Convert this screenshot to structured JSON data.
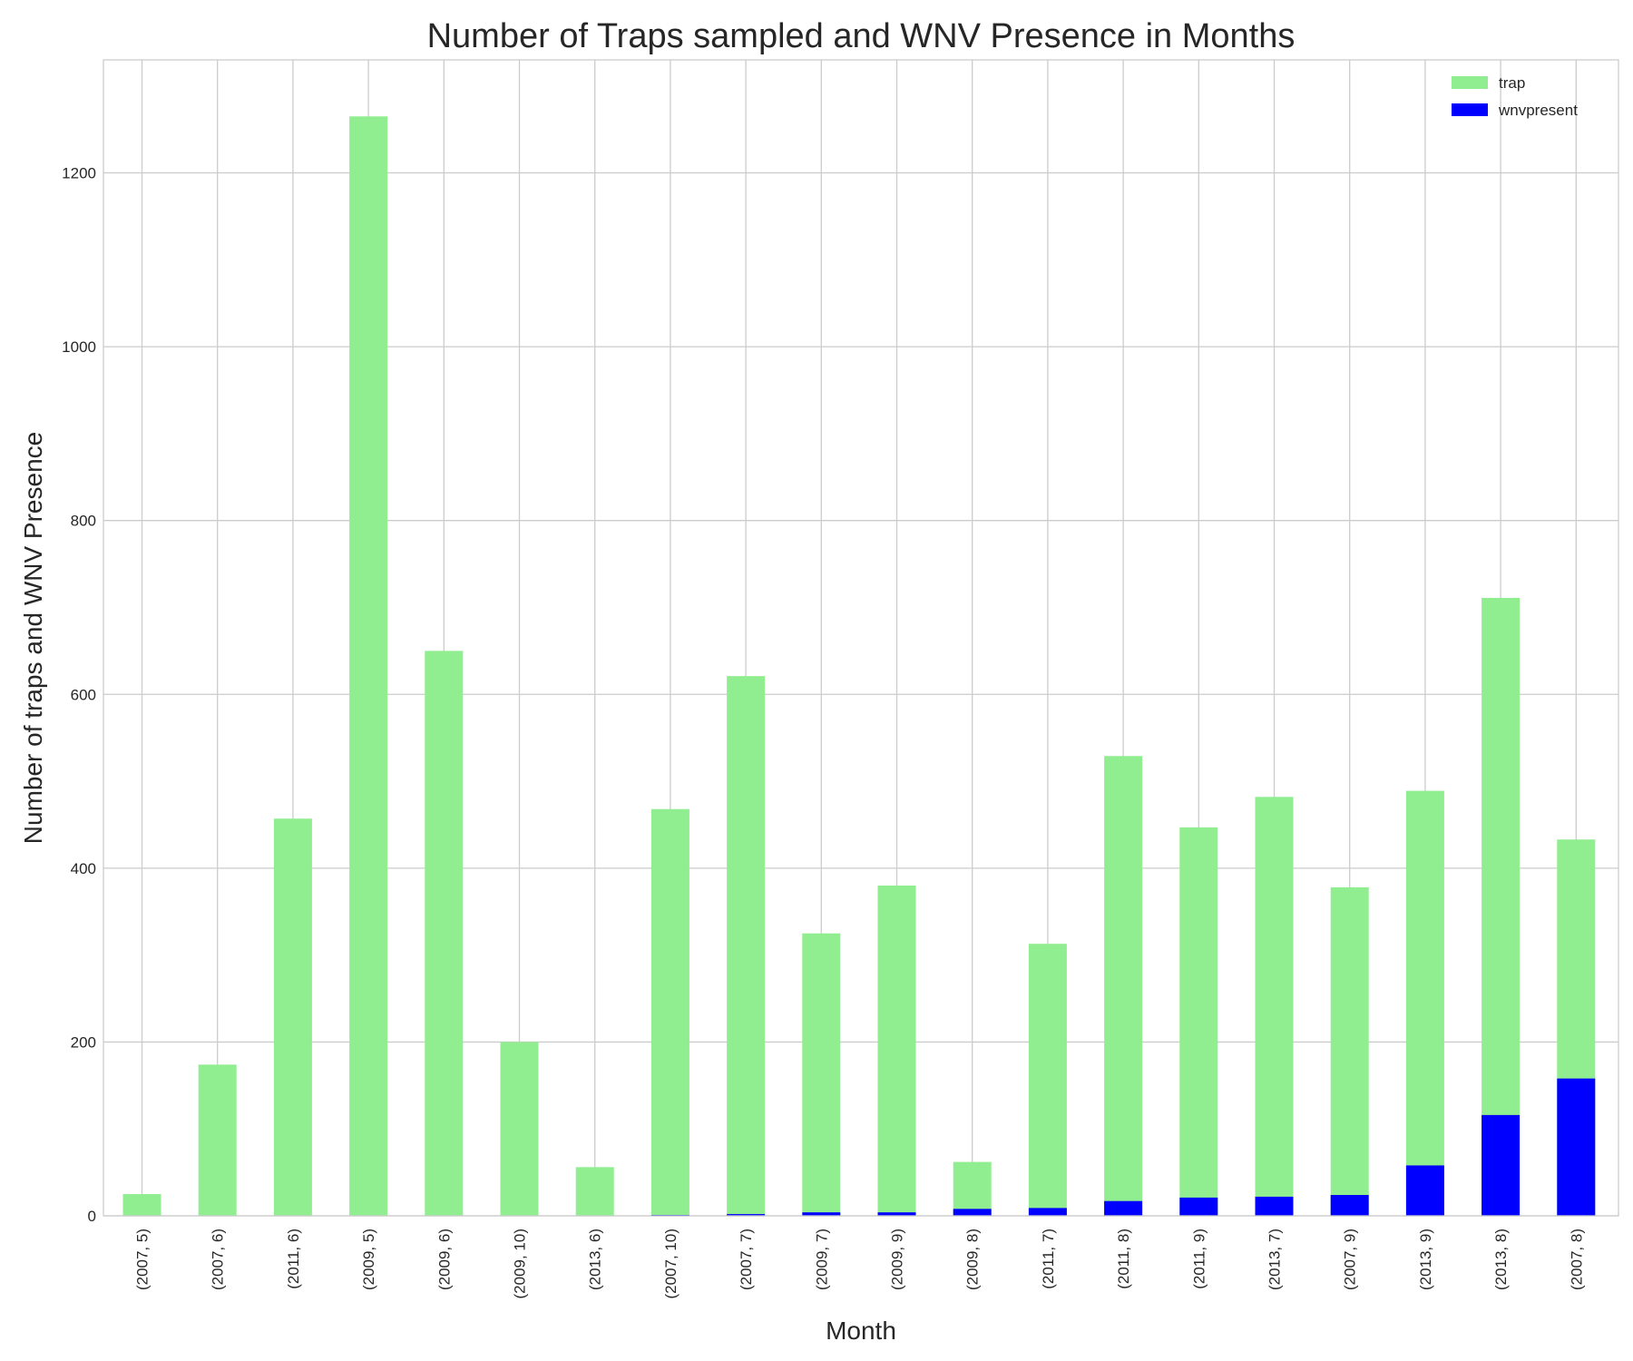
{
  "chart_data": {
    "type": "bar",
    "stacked": false,
    "title": "Number of Traps sampled and WNV Presence in Months",
    "xlabel": "Month",
    "ylabel": "Number of traps and WNV Presence",
    "ylim": [
      0,
      1330
    ],
    "yticks": [
      0,
      200,
      400,
      600,
      800,
      1000,
      1200
    ],
    "grid": true,
    "legend_position": "top-right",
    "categories": [
      "(2007, 5)",
      "(2007, 6)",
      "(2011, 6)",
      "(2009, 5)",
      "(2009, 6)",
      "(2009, 10)",
      "(2013, 6)",
      "(2007, 10)",
      "(2007, 7)",
      "(2009, 7)",
      "(2009, 9)",
      "(2009, 8)",
      "(2011, 7)",
      "(2011, 8)",
      "(2011, 9)",
      "(2013, 7)",
      "(2007, 9)",
      "(2013, 9)",
      "(2013, 8)",
      "(2007, 8)"
    ],
    "series": [
      {
        "name": "trap",
        "color": "#90ee90",
        "values": [
          25,
          174,
          457,
          1265,
          650,
          200,
          56,
          468,
          621,
          325,
          380,
          62,
          313,
          529,
          447,
          482,
          378,
          489,
          711,
          433
        ]
      },
      {
        "name": "wnvpresent",
        "color": "#0000ff",
        "values": [
          0,
          0,
          0,
          0,
          0,
          0,
          0,
          1,
          2,
          4,
          4,
          8,
          9,
          17,
          21,
          22,
          24,
          58,
          116,
          158
        ]
      }
    ]
  }
}
